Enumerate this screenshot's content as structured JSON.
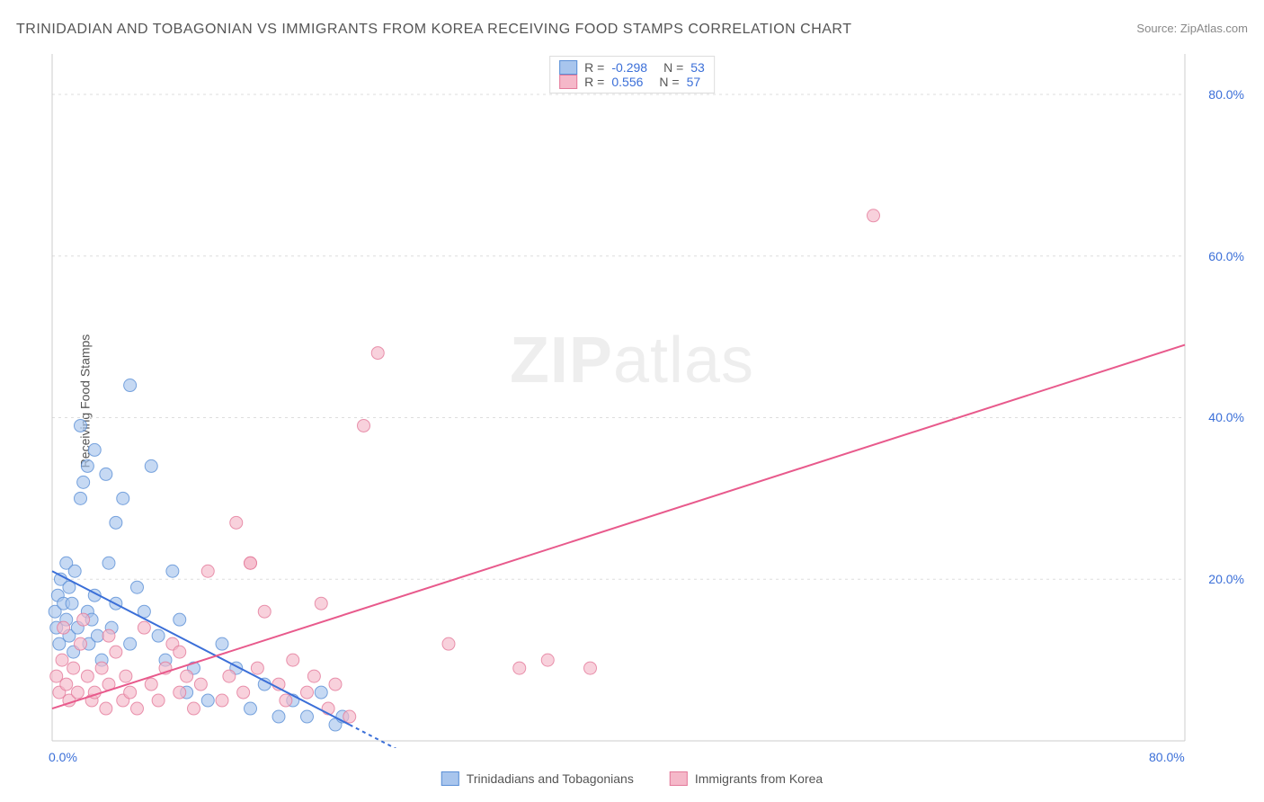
{
  "title": "TRINIDADIAN AND TOBAGONIAN VS IMMIGRANTS FROM KOREA RECEIVING FOOD STAMPS CORRELATION CHART",
  "source_label": "Source:",
  "source_name": "ZipAtlas.com",
  "y_axis_label": "Receiving Food Stamps",
  "watermark": "ZIPatlas",
  "chart": {
    "type": "scatter",
    "background_color": "#ffffff",
    "grid_color": "#dddddd",
    "grid_dash": "3,4",
    "axis_color": "#cccccc",
    "tick_label_color": "#3b6fd8",
    "tick_label_fontsize": 14,
    "xlim": [
      0,
      80
    ],
    "ylim": [
      0,
      85
    ],
    "x_ticks": [
      0,
      80
    ],
    "x_tick_labels": [
      "0.0%",
      "80.0%"
    ],
    "y_ticks": [
      20,
      40,
      60,
      80
    ],
    "y_tick_labels": [
      "20.0%",
      "40.0%",
      "60.0%",
      "80.0%"
    ],
    "series": [
      {
        "name": "Trinidadians and Tobagonians",
        "marker_color_fill": "#a8c5ed",
        "marker_color_stroke": "#5a8fd6",
        "marker_opacity": 0.65,
        "marker_radius": 7,
        "line_color": "#3b6fd8",
        "line_width": 2,
        "line_extrapolate_dash": "4,4",
        "R": "-0.298",
        "N": "53",
        "trend": {
          "x1": 0,
          "y1": 21,
          "x2": 21,
          "y2": 2,
          "x_dash_end": 30
        },
        "points": [
          [
            0.2,
            16
          ],
          [
            0.3,
            14
          ],
          [
            0.4,
            18
          ],
          [
            0.5,
            12
          ],
          [
            0.6,
            20
          ],
          [
            0.8,
            17
          ],
          [
            1.0,
            22
          ],
          [
            1.0,
            15
          ],
          [
            1.2,
            19
          ],
          [
            1.2,
            13
          ],
          [
            1.4,
            17
          ],
          [
            1.5,
            11
          ],
          [
            1.6,
            21
          ],
          [
            1.8,
            14
          ],
          [
            2.0,
            30
          ],
          [
            2.0,
            39
          ],
          [
            2.2,
            32
          ],
          [
            2.5,
            16
          ],
          [
            2.5,
            34
          ],
          [
            2.6,
            12
          ],
          [
            2.8,
            15
          ],
          [
            3.0,
            18
          ],
          [
            3.0,
            36
          ],
          [
            3.2,
            13
          ],
          [
            3.5,
            10
          ],
          [
            3.8,
            33
          ],
          [
            4.0,
            22
          ],
          [
            4.2,
            14
          ],
          [
            4.5,
            17
          ],
          [
            4.5,
            27
          ],
          [
            5.0,
            30
          ],
          [
            5.5,
            12
          ],
          [
            5.5,
            44
          ],
          [
            6.0,
            19
          ],
          [
            6.5,
            16
          ],
          [
            7.0,
            34
          ],
          [
            7.5,
            13
          ],
          [
            8.0,
            10
          ],
          [
            8.5,
            21
          ],
          [
            9.0,
            15
          ],
          [
            9.5,
            6
          ],
          [
            10.0,
            9
          ],
          [
            11.0,
            5
          ],
          [
            12.0,
            12
          ],
          [
            13.0,
            9
          ],
          [
            14.0,
            4
          ],
          [
            15.0,
            7
          ],
          [
            16.0,
            3
          ],
          [
            17.0,
            5
          ],
          [
            18.0,
            3
          ],
          [
            19.0,
            6
          ],
          [
            20.0,
            2
          ],
          [
            20.5,
            3
          ]
        ]
      },
      {
        "name": "Immigrants from Korea",
        "marker_color_fill": "#f5b8c9",
        "marker_color_stroke": "#e3799a",
        "marker_opacity": 0.65,
        "marker_radius": 7,
        "line_color": "#e85a8c",
        "line_width": 2,
        "R": "0.556",
        "N": "57",
        "trend": {
          "x1": 0,
          "y1": 4,
          "x2": 80,
          "y2": 49
        },
        "points": [
          [
            0.3,
            8
          ],
          [
            0.5,
            6
          ],
          [
            0.7,
            10
          ],
          [
            0.8,
            14
          ],
          [
            1.0,
            7
          ],
          [
            1.2,
            5
          ],
          [
            1.5,
            9
          ],
          [
            1.8,
            6
          ],
          [
            2.0,
            12
          ],
          [
            2.2,
            15
          ],
          [
            2.5,
            8
          ],
          [
            2.8,
            5
          ],
          [
            3.0,
            6
          ],
          [
            3.5,
            9
          ],
          [
            3.8,
            4
          ],
          [
            4.0,
            7
          ],
          [
            4.5,
            11
          ],
          [
            5.0,
            5
          ],
          [
            5.2,
            8
          ],
          [
            5.5,
            6
          ],
          [
            6.0,
            4
          ],
          [
            6.5,
            14
          ],
          [
            7.0,
            7
          ],
          [
            7.5,
            5
          ],
          [
            8.0,
            9
          ],
          [
            8.5,
            12
          ],
          [
            9.0,
            6
          ],
          [
            9.5,
            8
          ],
          [
            10.0,
            4
          ],
          [
            10.5,
            7
          ],
          [
            11.0,
            21
          ],
          [
            12.0,
            5
          ],
          [
            12.5,
            8
          ],
          [
            13.0,
            27
          ],
          [
            13.5,
            6
          ],
          [
            14.0,
            22
          ],
          [
            14.5,
            9
          ],
          [
            15.0,
            16
          ],
          [
            16.0,
            7
          ],
          [
            16.5,
            5
          ],
          [
            17.0,
            10
          ],
          [
            18.0,
            6
          ],
          [
            18.5,
            8
          ],
          [
            19.0,
            17
          ],
          [
            19.5,
            4
          ],
          [
            20.0,
            7
          ],
          [
            21.0,
            3
          ],
          [
            22.0,
            39
          ],
          [
            23.0,
            48
          ],
          [
            28.0,
            12
          ],
          [
            33.0,
            9
          ],
          [
            35.0,
            10
          ],
          [
            38.0,
            9
          ],
          [
            58.0,
            65
          ],
          [
            14.0,
            22
          ],
          [
            9.0,
            11
          ],
          [
            4.0,
            13
          ]
        ]
      }
    ]
  },
  "legend_top_rows": [
    {
      "swatch_fill": "#a8c5ed",
      "swatch_stroke": "#5a8fd6",
      "R": "-0.298",
      "N": "53"
    },
    {
      "swatch_fill": "#f5b8c9",
      "swatch_stroke": "#e3799a",
      "R": "0.556",
      "N": "57"
    }
  ],
  "legend_bottom_items": [
    {
      "swatch_fill": "#a8c5ed",
      "swatch_stroke": "#5a8fd6",
      "label": "Trinidadians and Tobagonians"
    },
    {
      "swatch_fill": "#f5b8c9",
      "swatch_stroke": "#e3799a",
      "label": "Immigrants from Korea"
    }
  ]
}
